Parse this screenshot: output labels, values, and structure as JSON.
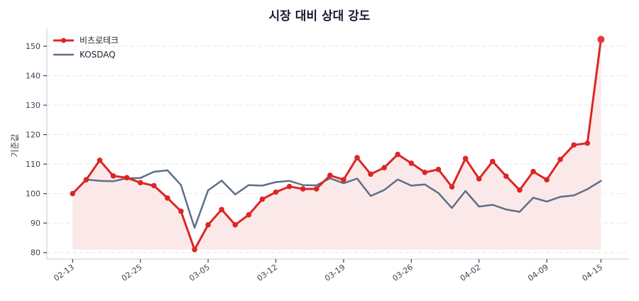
{
  "title": "시장 대비 상대 강도",
  "colors": {
    "primary": "#dc2626",
    "primary_fill": "#fbe9e9",
    "benchmark": "#5f6f87"
  },
  "chart_data": {
    "type": "line",
    "title": "시장 대비 상대 강도",
    "xlabel": "",
    "ylabel": "기준값",
    "ylim": [
      78,
      156
    ],
    "yticks": [
      80,
      90,
      100,
      110,
      120,
      130,
      140,
      150
    ],
    "grid": true,
    "legend_position": "upper left",
    "x_tick_labels": [
      {
        "index": 0,
        "label": "02-13"
      },
      {
        "index": 5,
        "label": "02-25"
      },
      {
        "index": 10,
        "label": "03-05"
      },
      {
        "index": 15,
        "label": "03-12"
      },
      {
        "index": 20,
        "label": "03-19"
      },
      {
        "index": 25,
        "label": "03-26"
      },
      {
        "index": 30,
        "label": "04-02"
      },
      {
        "index": 35,
        "label": "04-09"
      },
      {
        "index": 39,
        "label": "04-15"
      }
    ],
    "series": [
      {
        "name": "비츠로테크",
        "color": "#dc2626",
        "markers": true,
        "fill": true,
        "values": [
          100.0,
          104.7,
          111.3,
          106.0,
          105.4,
          103.7,
          102.7,
          98.5,
          94.0,
          81.0,
          89.4,
          94.6,
          89.4,
          92.8,
          98.1,
          100.5,
          102.4,
          101.6,
          101.6,
          106.2,
          104.7,
          112.2,
          106.6,
          108.8,
          113.3,
          110.3,
          107.2,
          108.2,
          102.3,
          111.9,
          105.0,
          110.9,
          105.9,
          101.2,
          107.5,
          104.7,
          111.6,
          116.5,
          117.1,
          152.3
        ]
      },
      {
        "name": "KOSDAQ",
        "color": "#5f6f87",
        "markers": false,
        "fill": false,
        "values": [
          100.0,
          104.8,
          104.3,
          104.2,
          105.2,
          105.3,
          107.4,
          107.9,
          102.9,
          88.4,
          101.1,
          104.4,
          99.7,
          102.9,
          102.7,
          103.9,
          104.3,
          102.9,
          102.8,
          105.2,
          103.5,
          105.1,
          99.2,
          101.2,
          104.8,
          102.7,
          103.1,
          100.2,
          95.1,
          100.9,
          95.6,
          96.2,
          94.6,
          93.8,
          98.6,
          97.3,
          98.9,
          99.4,
          101.5,
          104.3
        ]
      }
    ]
  },
  "legend": {
    "items": [
      {
        "label": "비츠로테크"
      },
      {
        "label": "KOSDAQ"
      }
    ]
  }
}
